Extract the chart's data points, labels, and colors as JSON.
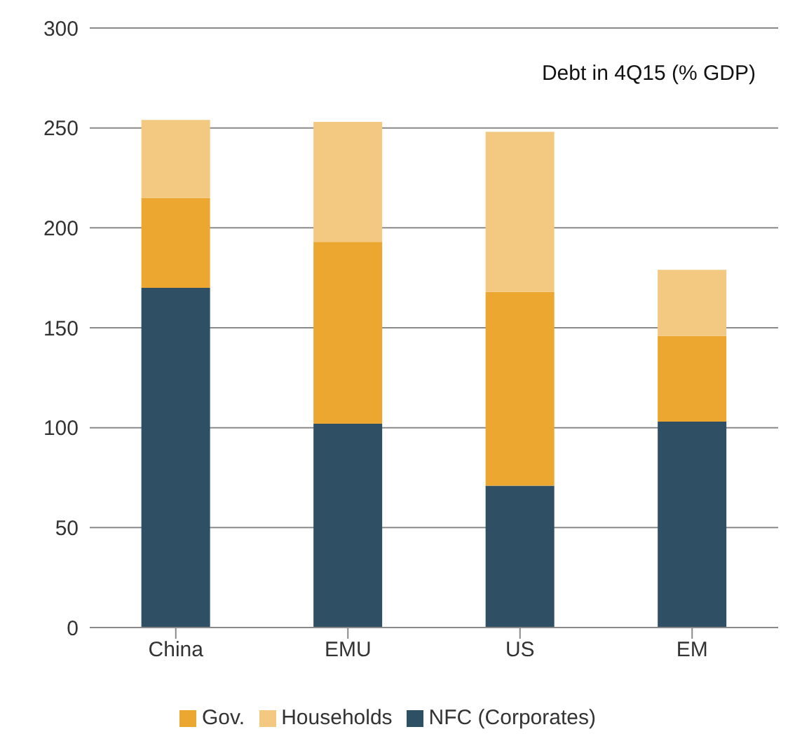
{
  "chart_data": {
    "type": "bar",
    "stacked": true,
    "categories": [
      "China",
      "EMU",
      "US",
      "EM"
    ],
    "series": [
      {
        "name": "NFC (Corporates)",
        "color": "#2f5064",
        "values": [
          170,
          102,
          71,
          103
        ]
      },
      {
        "name": "Gov.",
        "color": "#eca730",
        "values": [
          45,
          91,
          97,
          43
        ]
      },
      {
        "name": "Households",
        "color": "#f3c981",
        "values": [
          39,
          60,
          80,
          33
        ]
      }
    ],
    "ylim": [
      0,
      300
    ],
    "yticks": [
      0,
      50,
      100,
      150,
      200,
      250,
      300
    ],
    "grid": "y",
    "legend": "bottom",
    "annotations": [
      "Debt in 4Q15 (% GDP)"
    ]
  }
}
